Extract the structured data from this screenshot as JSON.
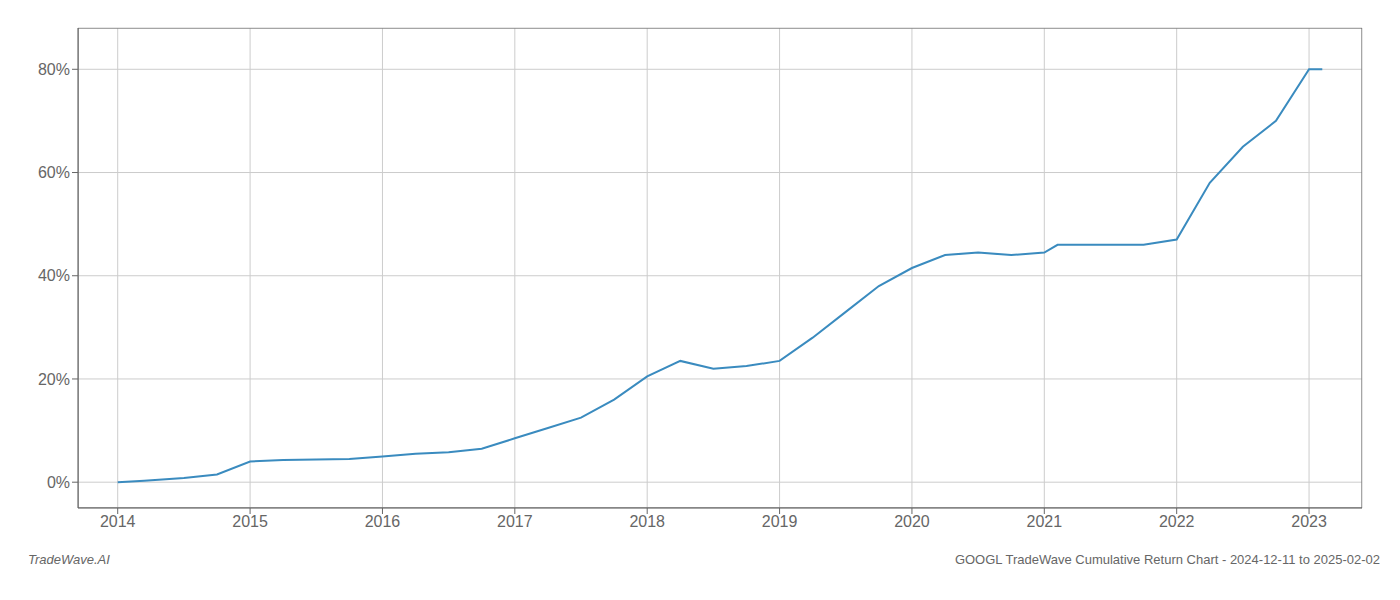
{
  "chart_data": {
    "type": "line",
    "title": "GOOGL TradeWave Cumulative Return Chart - 2024-12-11 to 2025-02-02",
    "annotations": [
      "TradeWave.AI"
    ],
    "x": [
      2014.0,
      2014.2,
      2014.5,
      2014.75,
      2015.0,
      2015.25,
      2015.5,
      2015.75,
      2016.0,
      2016.25,
      2016.5,
      2016.75,
      2017.0,
      2017.25,
      2017.5,
      2017.75,
      2018.0,
      2018.25,
      2018.5,
      2018.75,
      2019.0,
      2019.25,
      2019.5,
      2019.75,
      2020.0,
      2020.25,
      2020.5,
      2020.75,
      2021.0,
      2021.1,
      2021.25,
      2021.5,
      2021.75,
      2022.0,
      2022.25,
      2022.5,
      2022.75,
      2023.0,
      2023.1
    ],
    "values": [
      0.0,
      0.3,
      0.8,
      1.5,
      4.0,
      4.3,
      4.4,
      4.5,
      5.0,
      5.5,
      5.8,
      6.5,
      8.5,
      10.5,
      12.5,
      16.0,
      20.5,
      23.5,
      22.0,
      22.5,
      23.5,
      28.0,
      33.0,
      38.0,
      41.5,
      44.0,
      44.5,
      44.0,
      44.5,
      46.0,
      46.0,
      46.0,
      46.0,
      47.0,
      58.0,
      65.0,
      70.0,
      80.0,
      80.0
    ],
    "color": "#3a8bbf",
    "xlim": [
      2013.7,
      2023.4
    ],
    "ylim": [
      -5,
      88
    ],
    "xticks": [
      2014,
      2015,
      2016,
      2017,
      2018,
      2019,
      2020,
      2021,
      2022,
      2023
    ],
    "yticks": [
      {
        "value": 0,
        "label": "0%"
      },
      {
        "value": 20,
        "label": "20%"
      },
      {
        "value": 40,
        "label": "40%"
      },
      {
        "value": 60,
        "label": "60%"
      },
      {
        "value": 80,
        "label": "80%"
      }
    ],
    "grid": true
  }
}
